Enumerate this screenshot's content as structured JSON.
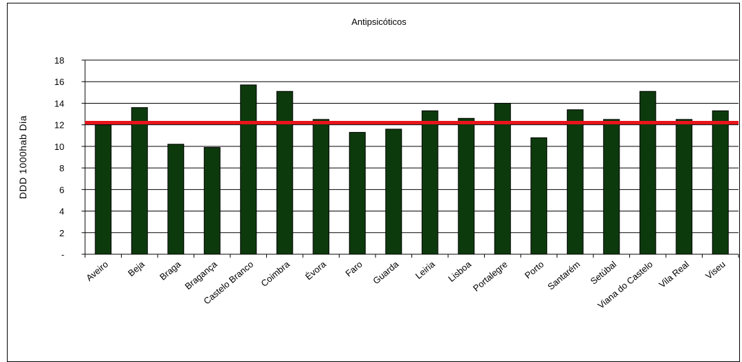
{
  "chart_data": {
    "type": "bar",
    "title": "Antipsicóticos",
    "ylabel": "DDD 1000hab Dia",
    "xlabel": "",
    "categories": [
      "Aveiro",
      "Beja",
      "Braga",
      "Bragança",
      "Castelo Branco",
      "Coimbra",
      "Évora",
      "Faro",
      "Guarda",
      "Leiria",
      "Lisboa",
      "Portalegre",
      "Porto",
      "Santarém",
      "Setúbal",
      "Viana do Castelo",
      "Vila Real",
      "Viseu"
    ],
    "values": [
      12.0,
      13.6,
      10.2,
      9.9,
      15.7,
      15.1,
      12.5,
      11.3,
      11.6,
      13.3,
      12.6,
      14.0,
      10.8,
      13.4,
      12.5,
      15.1,
      12.5,
      13.3
    ],
    "ylim": [
      0,
      18
    ],
    "yticks": [
      0,
      2,
      4,
      6,
      8,
      10,
      12,
      14,
      16,
      18
    ],
    "ytick_labels": [
      "-",
      "2",
      "4",
      "6",
      "8",
      "10",
      "12",
      "14",
      "16",
      "18"
    ],
    "reference_line": 12.2,
    "grid": true,
    "colors": {
      "bar": "#0d3a0d",
      "reference_line": "#e8141b",
      "grid": "#000000"
    }
  }
}
